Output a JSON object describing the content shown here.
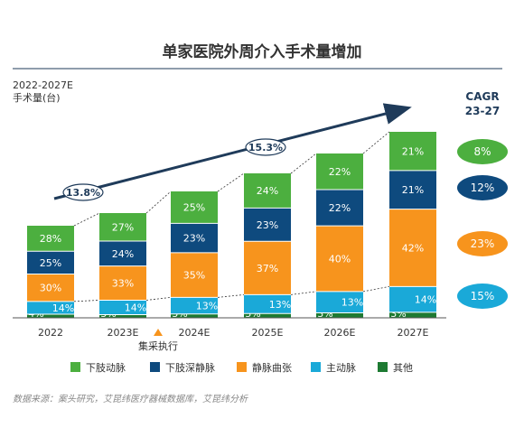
{
  "header": {
    "title": "单家医院外周介入手术量增加",
    "period": "2022-2027E",
    "unit_label": "手术量(台)",
    "cagr_title": "CAGR",
    "cagr_period": "23-27"
  },
  "annotations": {
    "growth_left": "13.8%",
    "growth_right": "15.3%",
    "policy_note": "集采执行"
  },
  "source": "数据来源：案头研究，艾昆纬医疗器械数据库，艾昆纬分析",
  "colors": {
    "green": "#4caf3f",
    "navy": "#0e4a7e",
    "orange": "#f7941d",
    "cyan": "#1aa9d8",
    "darkgreen": "#1d7a32",
    "arrow": "#1f3b5a",
    "rule": "#1f3b5a"
  },
  "chart_data": {
    "type": "bar",
    "stacked": "percent",
    "categories": [
      "2022",
      "2023E",
      "2024E",
      "2025E",
      "2026E",
      "2027E"
    ],
    "series": [
      {
        "name": "其他",
        "values": [
          4,
          3,
          3,
          3,
          3,
          3
        ],
        "color": "#1d7a32",
        "labels": [
          "4%",
          "3%",
          "3%",
          "3%",
          "3%",
          "3%"
        ]
      },
      {
        "name": "主动脉",
        "values": [
          14,
          14,
          13,
          13,
          13,
          14
        ],
        "color": "#1aa9d8",
        "labels": [
          "14%",
          "14%",
          "13%",
          "13%",
          "13%",
          "14%"
        ]
      },
      {
        "name": "静脉曲张",
        "values": [
          30,
          33,
          35,
          37,
          40,
          42
        ],
        "color": "#f7941d",
        "labels": [
          "30%",
          "33%",
          "35%",
          "37%",
          "40%",
          "42%"
        ]
      },
      {
        "name": "下肢深静脉",
        "values": [
          25,
          24,
          23,
          23,
          22,
          21
        ],
        "color": "#0e4a7e",
        "labels": [
          "25%",
          "24%",
          "23%",
          "23%",
          "22%",
          "21%"
        ]
      },
      {
        "name": "下肢动脉",
        "values": [
          28,
          27,
          25,
          24,
          22,
          21
        ],
        "color": "#4caf3f",
        "labels": [
          "28%",
          "27%",
          "25%",
          "24%",
          "22%",
          "21%"
        ]
      }
    ],
    "cagr": [
      {
        "series": "下肢动脉",
        "value": "8%",
        "color": "#4caf3f"
      },
      {
        "series": "下肢深静脉",
        "value": "12%",
        "color": "#0e4a7e"
      },
      {
        "series": "静脉曲张",
        "value": "23%",
        "color": "#f7941d"
      },
      {
        "series": "主动脉",
        "value": "15%",
        "color": "#1aa9d8"
      }
    ],
    "legend": [
      "下肢动脉",
      "下肢深静脉",
      "静脉曲张",
      "主动脉",
      "其他"
    ]
  }
}
